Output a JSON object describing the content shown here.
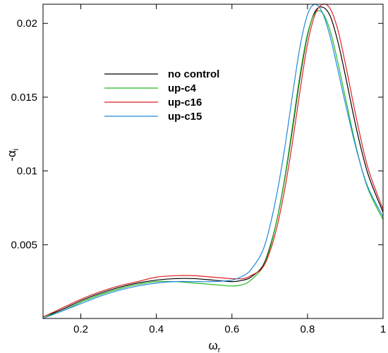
{
  "chart_data": {
    "type": "line",
    "title": "",
    "xlabel": {
      "base": "ω",
      "sub": "r"
    },
    "ylabel": {
      "base": "-α",
      "sub": "i"
    },
    "xlim": [
      0.1,
      1.0
    ],
    "ylim": [
      0.0,
      0.0213
    ],
    "xticks": [
      0.2,
      0.4,
      0.6,
      0.8,
      1
    ],
    "xtick_labels": [
      "0.2",
      "0.4",
      "0.6",
      "0.8",
      "1"
    ],
    "yticks": [
      0.005,
      0.01,
      0.015,
      0.02
    ],
    "ytick_labels": [
      "0.005",
      "0.01",
      "0.015",
      "0.02"
    ],
    "grid": false,
    "legend_position": "upper-left",
    "series": [
      {
        "name": "no control",
        "color": "#000000",
        "x": [
          0.1,
          0.15,
          0.2,
          0.25,
          0.3,
          0.35,
          0.4,
          0.45,
          0.5,
          0.55,
          0.6,
          0.63,
          0.65,
          0.68,
          0.7,
          0.72,
          0.74,
          0.76,
          0.78,
          0.8,
          0.82,
          0.84,
          0.86,
          0.88,
          0.9,
          0.93,
          0.96,
          1.0
        ],
        "y": [
          0.0001,
          0.0006,
          0.0012,
          0.0017,
          0.0021,
          0.0024,
          0.0026,
          0.0027,
          0.0027,
          0.0026,
          0.0025,
          0.0026,
          0.0028,
          0.0035,
          0.0048,
          0.0068,
          0.0095,
          0.0128,
          0.0163,
          0.0192,
          0.0208,
          0.0211,
          0.0205,
          0.0188,
          0.0165,
          0.0128,
          0.0098,
          0.0072
        ]
      },
      {
        "name": "up-c4",
        "color": "#22bb22",
        "x": [
          0.1,
          0.15,
          0.2,
          0.25,
          0.3,
          0.35,
          0.4,
          0.45,
          0.5,
          0.55,
          0.6,
          0.63,
          0.65,
          0.68,
          0.7,
          0.72,
          0.74,
          0.76,
          0.78,
          0.8,
          0.82,
          0.84,
          0.86,
          0.88,
          0.9,
          0.93,
          0.96,
          1.0
        ],
        "y": [
          0.0001,
          0.0005,
          0.0011,
          0.0016,
          0.002,
          0.0023,
          0.0025,
          0.0025,
          0.0024,
          0.0023,
          0.0022,
          0.0023,
          0.0026,
          0.0034,
          0.0047,
          0.0068,
          0.0096,
          0.013,
          0.0165,
          0.0193,
          0.0207,
          0.0207,
          0.0195,
          0.0174,
          0.015,
          0.0115,
          0.0088,
          0.0067
        ]
      },
      {
        "name": "up-c16",
        "color": "#dd2222",
        "x": [
          0.1,
          0.15,
          0.2,
          0.25,
          0.3,
          0.35,
          0.4,
          0.45,
          0.5,
          0.55,
          0.6,
          0.63,
          0.65,
          0.68,
          0.7,
          0.72,
          0.74,
          0.76,
          0.78,
          0.8,
          0.82,
          0.84,
          0.86,
          0.88,
          0.9,
          0.93,
          0.96,
          1.0
        ],
        "y": [
          0.0001,
          0.0007,
          0.0013,
          0.0018,
          0.0022,
          0.0025,
          0.0028,
          0.0029,
          0.0029,
          0.0028,
          0.0027,
          0.0027,
          0.0029,
          0.0034,
          0.0045,
          0.0063,
          0.0088,
          0.0119,
          0.0154,
          0.0186,
          0.0206,
          0.0213,
          0.021,
          0.0196,
          0.0173,
          0.0135,
          0.0102,
          0.0074
        ]
      },
      {
        "name": "up-c15",
        "color": "#2288dd",
        "x": [
          0.1,
          0.15,
          0.2,
          0.25,
          0.3,
          0.35,
          0.4,
          0.45,
          0.5,
          0.55,
          0.6,
          0.63,
          0.65,
          0.68,
          0.7,
          0.72,
          0.74,
          0.76,
          0.78,
          0.8,
          0.82,
          0.84,
          0.86,
          0.88,
          0.9,
          0.93,
          0.96,
          1.0
        ],
        "y": [
          0.0,
          0.0005,
          0.001,
          0.0015,
          0.0019,
          0.0022,
          0.0024,
          0.0025,
          0.0025,
          0.0025,
          0.0026,
          0.0029,
          0.0033,
          0.0045,
          0.0062,
          0.0086,
          0.0116,
          0.0151,
          0.0184,
          0.0206,
          0.0213,
          0.0207,
          0.0191,
          0.0169,
          0.0146,
          0.0114,
          0.0089,
          0.0069
        ]
      }
    ]
  }
}
